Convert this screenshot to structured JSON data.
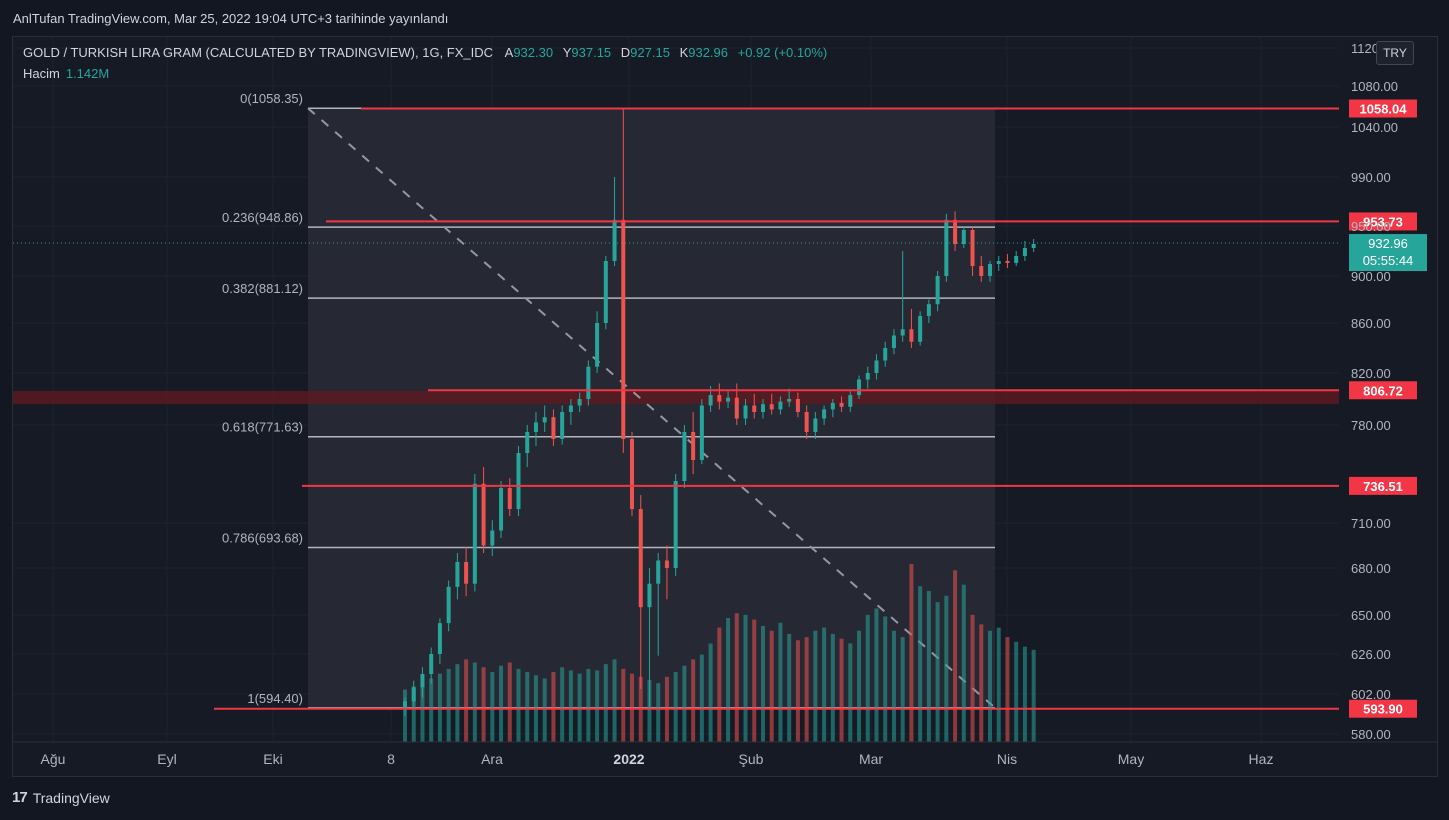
{
  "header": {
    "published": "AnlTufan TradingView.com, Mar 25, 2022 19:04 UTC+3 tarihinde yayınlandı"
  },
  "legend": {
    "symbol": "GOLD / TURKISH LIRA GRAM (CALCULATED BY TRADINGVIEW), 1G, FX_IDC",
    "open_label": "A",
    "open": "932.30",
    "high_label": "Y",
    "high": "937.15",
    "low_label": "D",
    "low": "927.15",
    "close_label": "K",
    "close": "932.96",
    "change": "+0.92 (+0.10%)",
    "volume_label": "Hacim",
    "volume": "1.142M"
  },
  "currency": "TRY",
  "footer": {
    "brand": "TradingView",
    "logo": "17"
  },
  "colors": {
    "up": "#26a69a",
    "down": "#ef5350",
    "line": "#f23645",
    "fib": "#b2b5be",
    "bg": "#161a25"
  },
  "chart_data": {
    "type": "candlestick",
    "y_ticks": [
      "1120.00",
      "1080.00",
      "1040.00",
      "990.00",
      "950.00",
      "900.00",
      "860.00",
      "820.00",
      "780.00",
      "710.00",
      "680.00",
      "650.00",
      "626.00",
      "602.00",
      "580.00"
    ],
    "x_ticks": [
      "Ağu",
      "Eyl",
      "Eki",
      "8",
      "Ara",
      "2022",
      "Şub",
      "Mar",
      "Nis",
      "May",
      "Haz"
    ],
    "bold_x_tick": "2022",
    "fib_levels": [
      {
        "label": "0(1058.35)",
        "value": 1058.35
      },
      {
        "label": "0.236(948.86)",
        "value": 948.86
      },
      {
        "label": "0.382(881.12)",
        "value": 881.12
      },
      {
        "label": "0.618(771.63)",
        "value": 771.63
      },
      {
        "label": "0.786(693.68)",
        "value": 693.68
      },
      {
        "label": "1(594.40)",
        "value": 594.4
      }
    ],
    "horizontal_lines": [
      {
        "label": "1058.04",
        "value": 1058.04
      },
      {
        "label": "953.73",
        "value": 953.73
      },
      {
        "label": "806.72",
        "value": 806.72
      },
      {
        "label": "736.51",
        "value": 736.51
      },
      {
        "label": "593.90",
        "value": 593.9
      }
    ],
    "last_price": {
      "label": "932.96",
      "countdown": "05:55:44",
      "value": 932.96
    },
    "candles": [
      {
        "o": 594,
        "h": 600,
        "l": 590,
        "c": 598
      },
      {
        "o": 598,
        "h": 610,
        "l": 595,
        "c": 606
      },
      {
        "o": 606,
        "h": 618,
        "l": 600,
        "c": 614
      },
      {
        "o": 614,
        "h": 630,
        "l": 608,
        "c": 626
      },
      {
        "o": 626,
        "h": 648,
        "l": 620,
        "c": 645
      },
      {
        "o": 645,
        "h": 672,
        "l": 640,
        "c": 668
      },
      {
        "o": 668,
        "h": 690,
        "l": 660,
        "c": 684
      },
      {
        "o": 684,
        "h": 694,
        "l": 662,
        "c": 670
      },
      {
        "o": 670,
        "h": 745,
        "l": 665,
        "c": 738
      },
      {
        "o": 738,
        "h": 750,
        "l": 690,
        "c": 695
      },
      {
        "o": 695,
        "h": 712,
        "l": 688,
        "c": 705
      },
      {
        "o": 705,
        "h": 740,
        "l": 700,
        "c": 735
      },
      {
        "o": 735,
        "h": 742,
        "l": 715,
        "c": 720
      },
      {
        "o": 720,
        "h": 765,
        "l": 715,
        "c": 760
      },
      {
        "o": 760,
        "h": 780,
        "l": 750,
        "c": 775
      },
      {
        "o": 775,
        "h": 790,
        "l": 765,
        "c": 782
      },
      {
        "o": 782,
        "h": 795,
        "l": 775,
        "c": 786
      },
      {
        "o": 786,
        "h": 792,
        "l": 765,
        "c": 770
      },
      {
        "o": 770,
        "h": 795,
        "l": 766,
        "c": 790
      },
      {
        "o": 790,
        "h": 800,
        "l": 780,
        "c": 795
      },
      {
        "o": 795,
        "h": 805,
        "l": 790,
        "c": 800
      },
      {
        "o": 800,
        "h": 830,
        "l": 795,
        "c": 825
      },
      {
        "o": 825,
        "h": 870,
        "l": 820,
        "c": 860
      },
      {
        "o": 860,
        "h": 920,
        "l": 855,
        "c": 915
      },
      {
        "o": 915,
        "h": 990,
        "l": 910,
        "c": 955
      },
      {
        "o": 955,
        "h": 1058,
        "l": 760,
        "c": 770
      },
      {
        "o": 770,
        "h": 775,
        "l": 715,
        "c": 720
      },
      {
        "o": 720,
        "h": 730,
        "l": 605,
        "c": 655
      },
      {
        "o": 655,
        "h": 680,
        "l": 594,
        "c": 670
      },
      {
        "o": 670,
        "h": 690,
        "l": 625,
        "c": 685
      },
      {
        "o": 685,
        "h": 695,
        "l": 660,
        "c": 680
      },
      {
        "o": 680,
        "h": 745,
        "l": 675,
        "c": 740
      },
      {
        "o": 740,
        "h": 780,
        "l": 735,
        "c": 775
      },
      {
        "o": 775,
        "h": 790,
        "l": 745,
        "c": 755
      },
      {
        "o": 755,
        "h": 800,
        "l": 752,
        "c": 795
      },
      {
        "o": 795,
        "h": 810,
        "l": 790,
        "c": 803
      },
      {
        "o": 803,
        "h": 812,
        "l": 792,
        "c": 798
      },
      {
        "o": 798,
        "h": 806,
        "l": 793,
        "c": 801
      },
      {
        "o": 801,
        "h": 812,
        "l": 780,
        "c": 785
      },
      {
        "o": 785,
        "h": 800,
        "l": 780,
        "c": 795
      },
      {
        "o": 795,
        "h": 804,
        "l": 785,
        "c": 790
      },
      {
        "o": 790,
        "h": 800,
        "l": 785,
        "c": 796
      },
      {
        "o": 796,
        "h": 804,
        "l": 788,
        "c": 792
      },
      {
        "o": 792,
        "h": 802,
        "l": 788,
        "c": 798
      },
      {
        "o": 798,
        "h": 808,
        "l": 794,
        "c": 800
      },
      {
        "o": 800,
        "h": 805,
        "l": 786,
        "c": 790
      },
      {
        "o": 790,
        "h": 795,
        "l": 770,
        "c": 775
      },
      {
        "o": 775,
        "h": 790,
        "l": 770,
        "c": 785
      },
      {
        "o": 785,
        "h": 795,
        "l": 780,
        "c": 792
      },
      {
        "o": 792,
        "h": 800,
        "l": 786,
        "c": 797
      },
      {
        "o": 797,
        "h": 802,
        "l": 790,
        "c": 794
      },
      {
        "o": 794,
        "h": 806,
        "l": 790,
        "c": 803
      },
      {
        "o": 803,
        "h": 818,
        "l": 800,
        "c": 815
      },
      {
        "o": 815,
        "h": 825,
        "l": 808,
        "c": 820
      },
      {
        "o": 820,
        "h": 835,
        "l": 815,
        "c": 830
      },
      {
        "o": 830,
        "h": 845,
        "l": 825,
        "c": 840
      },
      {
        "o": 840,
        "h": 855,
        "l": 835,
        "c": 850
      },
      {
        "o": 850,
        "h": 925,
        "l": 845,
        "c": 855
      },
      {
        "o": 855,
        "h": 872,
        "l": 840,
        "c": 845
      },
      {
        "o": 845,
        "h": 870,
        "l": 842,
        "c": 866
      },
      {
        "o": 866,
        "h": 880,
        "l": 860,
        "c": 876
      },
      {
        "o": 876,
        "h": 905,
        "l": 870,
        "c": 900
      },
      {
        "o": 900,
        "h": 960,
        "l": 895,
        "c": 955
      },
      {
        "o": 955,
        "h": 962,
        "l": 925,
        "c": 932
      },
      {
        "o": 932,
        "h": 950,
        "l": 928,
        "c": 946
      },
      {
        "o": 946,
        "h": 950,
        "l": 900,
        "c": 910
      },
      {
        "o": 910,
        "h": 920,
        "l": 895,
        "c": 900
      },
      {
        "o": 900,
        "h": 915,
        "l": 895,
        "c": 912
      },
      {
        "o": 912,
        "h": 920,
        "l": 905,
        "c": 915
      },
      {
        "o": 915,
        "h": 922,
        "l": 908,
        "c": 913
      },
      {
        "o": 913,
        "h": 925,
        "l": 910,
        "c": 920
      },
      {
        "o": 920,
        "h": 935,
        "l": 915,
        "c": 928
      },
      {
        "o": 928,
        "h": 937,
        "l": 924,
        "c": 932
      }
    ],
    "volume": [
      0.33,
      0.35,
      0.38,
      0.4,
      0.43,
      0.46,
      0.49,
      0.52,
      0.5,
      0.47,
      0.44,
      0.48,
      0.5,
      0.46,
      0.44,
      0.42,
      0.4,
      0.44,
      0.47,
      0.45,
      0.43,
      0.46,
      0.45,
      0.49,
      0.52,
      0.46,
      0.43,
      0.41,
      0.39,
      0.37,
      0.41,
      0.44,
      0.48,
      0.52,
      0.55,
      0.62,
      0.72,
      0.78,
      0.81,
      0.8,
      0.77,
      0.73,
      0.7,
      0.75,
      0.68,
      0.64,
      0.66,
      0.7,
      0.72,
      0.68,
      0.65,
      0.62,
      0.7,
      0.8,
      0.84,
      0.79,
      0.7,
      0.66,
      1.12,
      0.98,
      0.95,
      0.88,
      0.92,
      1.08,
      0.99,
      0.8,
      0.74,
      0.7,
      0.72,
      0.66,
      0.63,
      0.6,
      0.58
    ]
  }
}
